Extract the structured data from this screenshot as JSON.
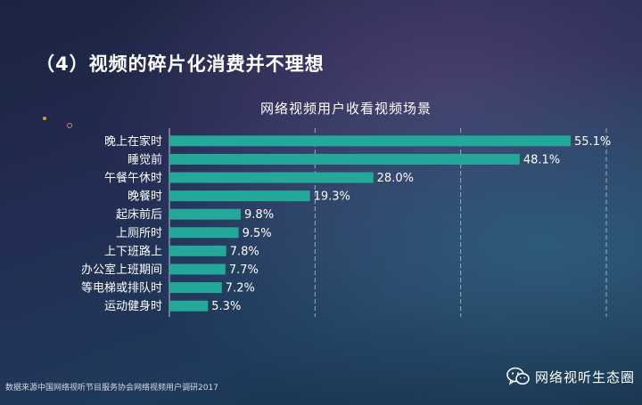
{
  "slide_title": "（4）视频的碎片化消费并不理想",
  "footnote": "数据来源中国网络视听节目服务协会网络视频用户调研2017",
  "brand": {
    "name": "网络视听生态圈",
    "icon": "wechat-icon"
  },
  "colors": {
    "bar": "#23a89a",
    "grid": "#ffffff",
    "text": "#ffffff"
  },
  "chart_data": {
    "type": "bar",
    "orientation": "horizontal",
    "title": "网络视频用户收看视频场景",
    "categories": [
      "晚上在家时",
      "睡觉前",
      "午餐午休时",
      "晚餐时",
      "起床前后",
      "上厕所时",
      "上下班路上",
      "办公室上班期间",
      "等电梯或排队时",
      "运动健身时"
    ],
    "values": [
      55.1,
      48.1,
      28.0,
      19.3,
      9.8,
      9.5,
      7.8,
      7.7,
      7.2,
      5.3
    ],
    "value_labels": [
      "55.1%",
      "48.1%",
      "28.0%",
      "19.3%",
      "9.8%",
      "9.5%",
      "7.8%",
      "7.7%",
      "7.2%",
      "5.3%"
    ],
    "xlim": [
      0,
      60
    ],
    "gridlines": [
      20,
      40,
      60
    ],
    "grid": true,
    "grid_style": "dashed vertical"
  }
}
